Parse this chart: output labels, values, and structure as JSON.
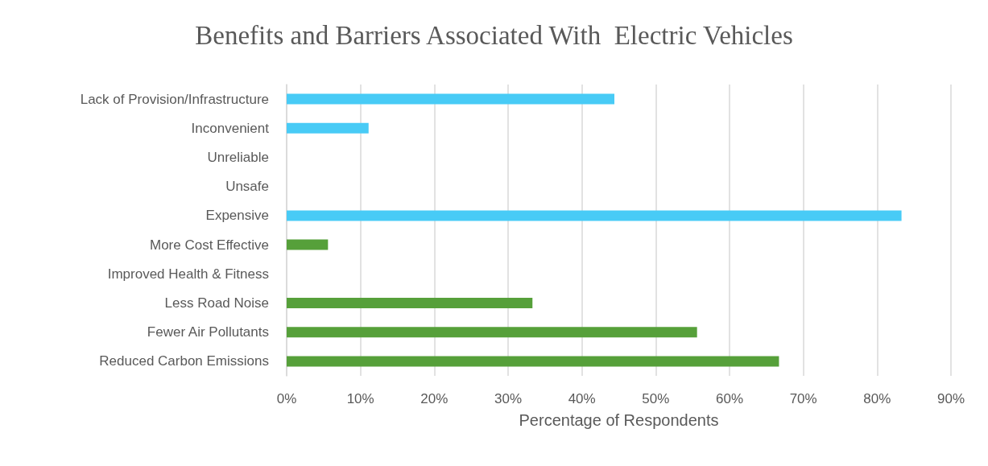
{
  "chart_data": {
    "type": "bar",
    "orientation": "horizontal",
    "title": "Benefits and Barriers Associated With  Electric Vehicles",
    "xlabel": "Percentage of Respondents",
    "categories": [
      "Lack of Provision/Infrastructure",
      "Inconvenient",
      "Unreliable",
      "Unsafe",
      "Expensive",
      "More Cost Effective",
      "Improved Health & Fitness",
      "Less Road Noise",
      "Fewer Air Pollutants",
      "Reduced Carbon Emissions"
    ],
    "values": [
      44.4,
      11.1,
      0,
      0,
      83.3,
      5.6,
      0,
      33.3,
      55.6,
      66.7
    ],
    "colors": [
      "#48cbf6",
      "#48cbf6",
      "#48cbf6",
      "#48cbf6",
      "#48cbf6",
      "#56a03a",
      "#56a03a",
      "#56a03a",
      "#56a03a",
      "#56a03a"
    ],
    "xlim": [
      0,
      90
    ],
    "xticks": [
      {
        "value": 0,
        "label": "0%"
      },
      {
        "value": 10,
        "label": "10%"
      },
      {
        "value": 20,
        "label": "20%"
      },
      {
        "value": 30,
        "label": "30%"
      },
      {
        "value": 40,
        "label": "40%"
      },
      {
        "value": 50,
        "label": "50%"
      },
      {
        "value": 60,
        "label": "60%"
      },
      {
        "value": 70,
        "label": "70%"
      },
      {
        "value": 80,
        "label": "80%"
      },
      {
        "value": 90,
        "label": "90%"
      }
    ],
    "grid": "x"
  }
}
